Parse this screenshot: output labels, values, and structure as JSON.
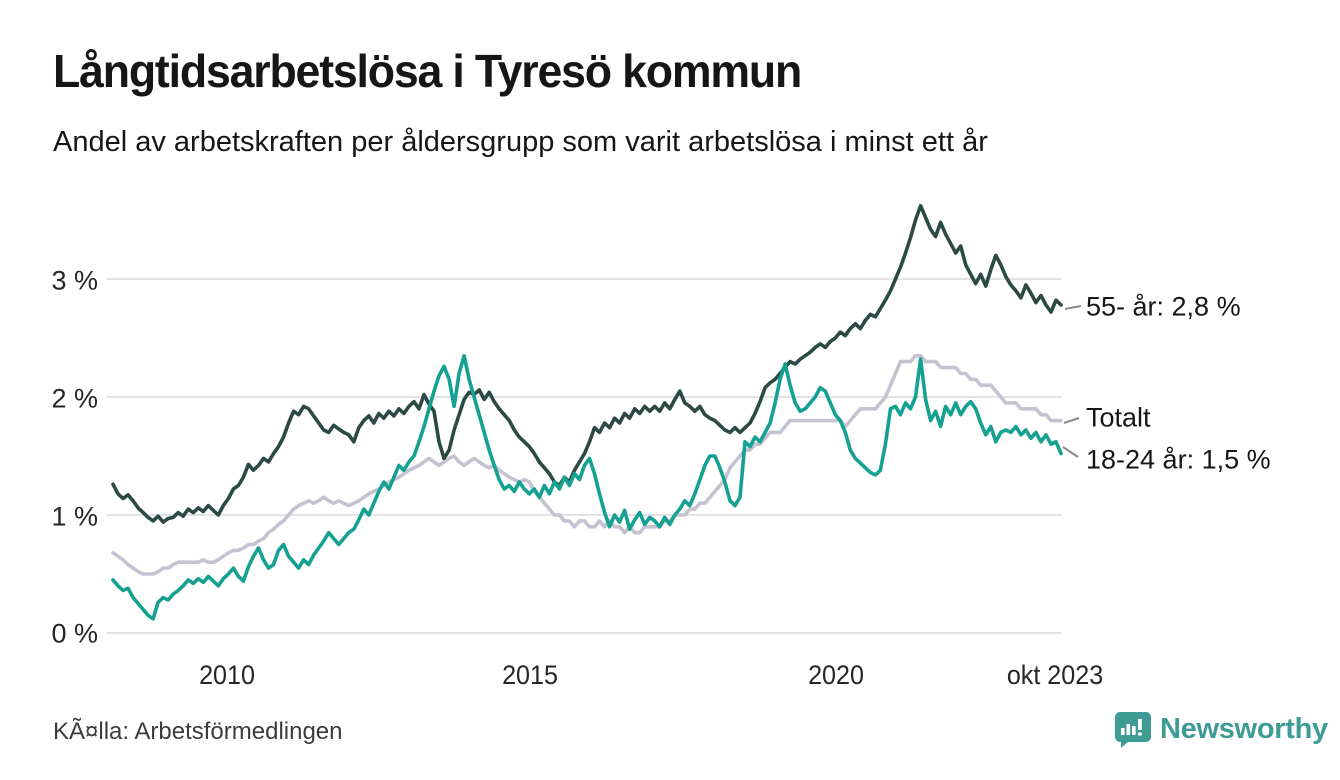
{
  "header": {
    "title": "Långtidsarbetslösa i Tyresö kommun",
    "subtitle": "Andel av arbetskraften per åldersgrupp som varit arbetslösa i minst ett år"
  },
  "source": {
    "label": "KÃ¤lla: Arbetsförmedlingen"
  },
  "branding": {
    "logo_text": "Newsworthy",
    "logo_color": "#3e9c94"
  },
  "colors": {
    "series_55": "#2c4a44",
    "series_total": "#c5c3d1",
    "series_18_24": "#15a191",
    "gridline": "#e3e3e7",
    "connector": "#8a8a8a"
  },
  "chart_data": {
    "type": "line",
    "title": "Långtidsarbetslösa i Tyresö kommun",
    "subtitle": "Andel av arbetskraften per åldersgrupp som varit arbetslösa i minst ett år",
    "unit": "% av arbetskraften",
    "frequency": "monthly",
    "x_start": "2008-01",
    "x_end": "2023-10",
    "ylim": [
      0,
      3.75
    ],
    "grid": true,
    "legend_position": "right-end-labels",
    "y_ticks": [
      {
        "label": "0 %",
        "value": 0
      },
      {
        "label": "1 %",
        "value": 1
      },
      {
        "label": "2 %",
        "value": 2
      },
      {
        "label": "3 %",
        "value": 3
      }
    ],
    "x_ticks": [
      {
        "label": "2010",
        "month_index": 24
      },
      {
        "label": "2015",
        "month_index": 84
      },
      {
        "label": "2020",
        "month_index": 144
      },
      {
        "label": "okt 2023",
        "month_index": 189
      }
    ],
    "series": [
      {
        "name": "55- år",
        "end_label": "55- år: 2,8 %",
        "last_value": "2,8 %",
        "color": "#2c4a44",
        "values": [
          1.26,
          1.18,
          1.14,
          1.17,
          1.12,
          1.06,
          1.02,
          0.98,
          0.95,
          0.99,
          0.94,
          0.97,
          0.98,
          1.02,
          0.99,
          1.05,
          1.02,
          1.06,
          1.03,
          1.08,
          1.04,
          1.0,
          1.08,
          1.14,
          1.22,
          1.25,
          1.32,
          1.43,
          1.38,
          1.42,
          1.48,
          1.45,
          1.52,
          1.58,
          1.66,
          1.78,
          1.88,
          1.85,
          1.92,
          1.9,
          1.84,
          1.78,
          1.72,
          1.7,
          1.76,
          1.73,
          1.7,
          1.68,
          1.62,
          1.74,
          1.8,
          1.84,
          1.78,
          1.86,
          1.82,
          1.88,
          1.84,
          1.9,
          1.86,
          1.92,
          1.96,
          1.9,
          2.02,
          1.94,
          1.88,
          1.62,
          1.48,
          1.55,
          1.72,
          1.85,
          1.98,
          2.04,
          2.02,
          2.06,
          1.98,
          2.04,
          1.96,
          1.9,
          1.85,
          1.8,
          1.72,
          1.66,
          1.62,
          1.58,
          1.52,
          1.45,
          1.4,
          1.35,
          1.28,
          1.25,
          1.32,
          1.28,
          1.38,
          1.45,
          1.52,
          1.62,
          1.74,
          1.7,
          1.78,
          1.74,
          1.82,
          1.78,
          1.86,
          1.82,
          1.9,
          1.86,
          1.92,
          1.88,
          1.92,
          1.88,
          1.95,
          1.9,
          1.98,
          2.05,
          1.95,
          1.92,
          1.88,
          1.92,
          1.85,
          1.82,
          1.8,
          1.76,
          1.72,
          1.7,
          1.74,
          1.7,
          1.74,
          1.78,
          1.86,
          1.96,
          2.08,
          2.12,
          2.15,
          2.2,
          2.25,
          2.3,
          2.28,
          2.32,
          2.35,
          2.38,
          2.42,
          2.45,
          2.42,
          2.47,
          2.5,
          2.55,
          2.52,
          2.58,
          2.62,
          2.58,
          2.65,
          2.7,
          2.68,
          2.75,
          2.82,
          2.9,
          3.0,
          3.1,
          3.22,
          3.35,
          3.5,
          3.62,
          3.52,
          3.42,
          3.36,
          3.48,
          3.38,
          3.3,
          3.22,
          3.28,
          3.12,
          3.04,
          2.96,
          3.04,
          2.94,
          3.08,
          3.2,
          3.12,
          3.02,
          2.95,
          2.9,
          2.84,
          2.95,
          2.88,
          2.8,
          2.86,
          2.78,
          2.72,
          2.82,
          2.78
        ]
      },
      {
        "name": "Totalt",
        "end_label": "Totalt",
        "last_value": "1,8 %",
        "color": "#c5c3d1",
        "values": [
          0.68,
          0.65,
          0.62,
          0.58,
          0.55,
          0.52,
          0.5,
          0.5,
          0.5,
          0.52,
          0.55,
          0.55,
          0.58,
          0.6,
          0.6,
          0.6,
          0.6,
          0.6,
          0.62,
          0.6,
          0.6,
          0.62,
          0.65,
          0.68,
          0.7,
          0.7,
          0.72,
          0.75,
          0.75,
          0.78,
          0.8,
          0.85,
          0.88,
          0.92,
          0.95,
          1.0,
          1.05,
          1.08,
          1.1,
          1.12,
          1.1,
          1.12,
          1.15,
          1.12,
          1.1,
          1.12,
          1.1,
          1.08,
          1.1,
          1.12,
          1.15,
          1.18,
          1.2,
          1.22,
          1.25,
          1.28,
          1.3,
          1.32,
          1.35,
          1.38,
          1.4,
          1.42,
          1.45,
          1.48,
          1.45,
          1.42,
          1.45,
          1.48,
          1.5,
          1.45,
          1.42,
          1.45,
          1.48,
          1.45,
          1.42,
          1.4,
          1.42,
          1.38,
          1.35,
          1.32,
          1.3,
          1.28,
          1.3,
          1.28,
          1.2,
          1.15,
          1.1,
          1.05,
          1.0,
          1.0,
          0.95,
          0.95,
          0.9,
          0.95,
          0.95,
          0.9,
          0.9,
          0.95,
          0.9,
          0.95,
          0.9,
          0.9,
          0.85,
          0.9,
          0.85,
          0.85,
          0.9,
          0.9,
          0.9,
          0.9,
          0.95,
          0.95,
          1.0,
          1.0,
          1.0,
          1.05,
          1.05,
          1.1,
          1.1,
          1.15,
          1.2,
          1.25,
          1.3,
          1.4,
          1.45,
          1.5,
          1.55,
          1.55,
          1.6,
          1.6,
          1.65,
          1.7,
          1.7,
          1.7,
          1.75,
          1.8,
          1.8,
          1.8,
          1.8,
          1.8,
          1.8,
          1.8,
          1.8,
          1.8,
          1.8,
          1.8,
          1.75,
          1.8,
          1.85,
          1.9,
          1.9,
          1.9,
          1.9,
          1.95,
          2.0,
          2.1,
          2.2,
          2.3,
          2.3,
          2.3,
          2.35,
          2.35,
          2.3,
          2.3,
          2.3,
          2.25,
          2.25,
          2.25,
          2.25,
          2.2,
          2.2,
          2.15,
          2.15,
          2.1,
          2.1,
          2.1,
          2.05,
          2.0,
          1.95,
          1.95,
          1.95,
          1.9,
          1.9,
          1.9,
          1.9,
          1.85,
          1.85,
          1.8,
          1.8,
          1.8
        ]
      },
      {
        "name": "18-24 år",
        "end_label": "18-24 år: 1,5 %",
        "last_value": "1,5 %",
        "color": "#15a191",
        "values": [
          0.45,
          0.4,
          0.36,
          0.38,
          0.3,
          0.25,
          0.2,
          0.15,
          0.12,
          0.26,
          0.3,
          0.28,
          0.33,
          0.36,
          0.4,
          0.45,
          0.42,
          0.46,
          0.43,
          0.48,
          0.44,
          0.4,
          0.46,
          0.5,
          0.55,
          0.48,
          0.44,
          0.56,
          0.65,
          0.72,
          0.62,
          0.55,
          0.58,
          0.7,
          0.75,
          0.65,
          0.6,
          0.55,
          0.62,
          0.58,
          0.66,
          0.72,
          0.78,
          0.85,
          0.8,
          0.75,
          0.8,
          0.85,
          0.88,
          0.96,
          1.05,
          1.0,
          1.1,
          1.2,
          1.28,
          1.22,
          1.32,
          1.42,
          1.38,
          1.45,
          1.5,
          1.62,
          1.75,
          1.9,
          2.05,
          2.18,
          2.26,
          2.15,
          1.92,
          2.2,
          2.35,
          2.15,
          2.0,
          1.85,
          1.7,
          1.55,
          1.42,
          1.3,
          1.22,
          1.25,
          1.2,
          1.28,
          1.22,
          1.18,
          1.22,
          1.15,
          1.25,
          1.18,
          1.28,
          1.22,
          1.32,
          1.25,
          1.35,
          1.3,
          1.42,
          1.48,
          1.35,
          1.18,
          1.02,
          0.9,
          1.0,
          0.94,
          1.04,
          0.88,
          0.96,
          1.02,
          0.92,
          0.98,
          0.95,
          0.9,
          0.98,
          0.92,
          1.0,
          1.05,
          1.12,
          1.08,
          1.18,
          1.3,
          1.42,
          1.5,
          1.5,
          1.4,
          1.28,
          1.12,
          1.08,
          1.15,
          1.62,
          1.58,
          1.66,
          1.62,
          1.7,
          1.78,
          1.95,
          2.15,
          2.28,
          2.1,
          1.95,
          1.88,
          1.9,
          1.95,
          2.0,
          2.08,
          2.05,
          1.95,
          1.85,
          1.8,
          1.7,
          1.55,
          1.48,
          1.44,
          1.4,
          1.36,
          1.34,
          1.38,
          1.6,
          1.9,
          1.92,
          1.85,
          1.95,
          1.9,
          2.0,
          2.32,
          1.98,
          1.8,
          1.88,
          1.75,
          1.92,
          1.85,
          1.95,
          1.85,
          1.92,
          1.96,
          1.9,
          1.78,
          1.68,
          1.75,
          1.62,
          1.7,
          1.72,
          1.7,
          1.75,
          1.68,
          1.72,
          1.65,
          1.7,
          1.62,
          1.68,
          1.6,
          1.62,
          1.52
        ]
      }
    ]
  }
}
